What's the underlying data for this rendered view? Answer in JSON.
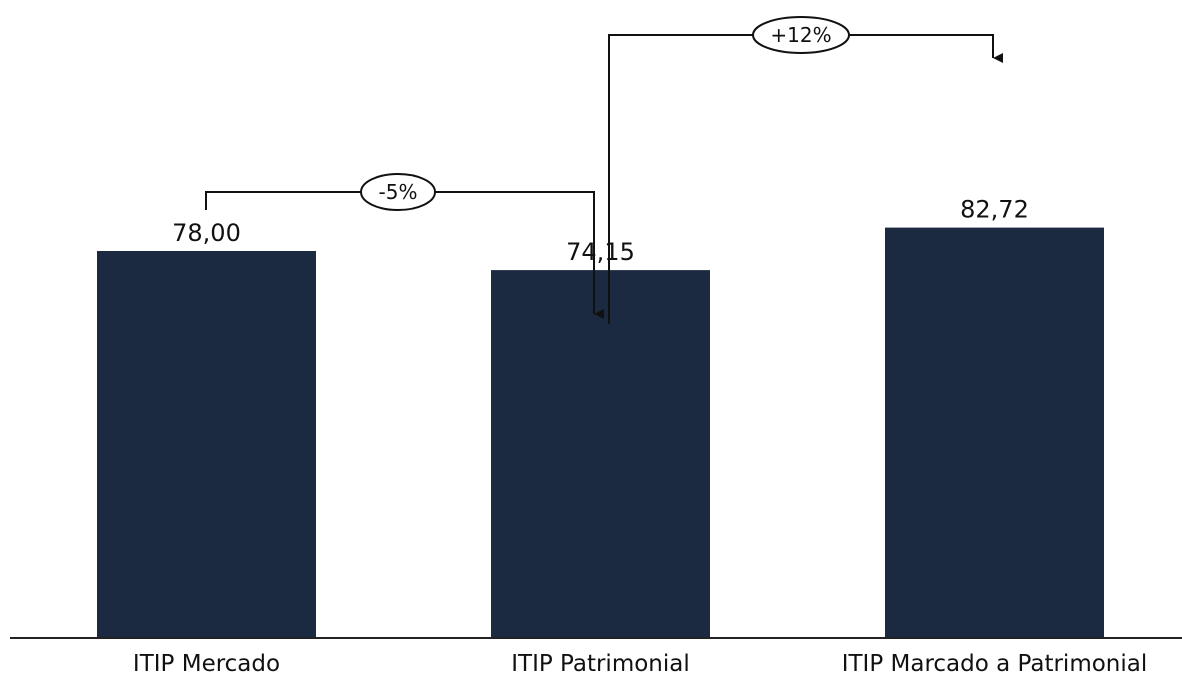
{
  "chart_data": {
    "type": "bar",
    "categories": [
      "ITIP Mercado",
      "ITIP Patrimonial",
      "ITIP Marcado a Patrimonial"
    ],
    "values": [
      78.0,
      74.15,
      82.72
    ],
    "value_labels": [
      "78,00",
      "74,15",
      "82,72"
    ],
    "title": "",
    "xlabel": "",
    "ylabel": "",
    "ylim": [
      0,
      100
    ],
    "grid": false,
    "annotations": [
      {
        "from": "ITIP Mercado",
        "to": "ITIP Patrimonial",
        "label": "-5%"
      },
      {
        "from": "ITIP Patrimonial",
        "to": "ITIP Marcado a Patrimonial",
        "label": "+12%"
      }
    ],
    "colors": {
      "bar": "#1b2a41",
      "axis": "#222222",
      "text": "#111111",
      "annotation": "#111111"
    }
  }
}
